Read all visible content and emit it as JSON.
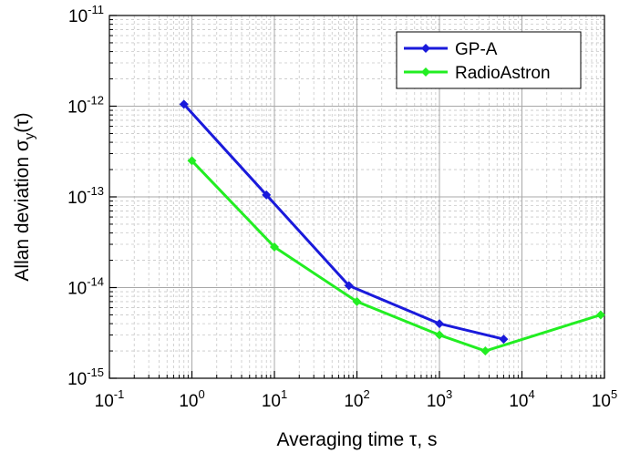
{
  "chart_data": {
    "type": "line",
    "title": "",
    "xlabel": "Averaging time τ, s",
    "ylabel": "Allan deviation σy(τ)",
    "xscale": "log",
    "yscale": "log",
    "xlim": [
      0.1,
      100000
    ],
    "ylim": [
      1e-15,
      1e-11
    ],
    "grid": true,
    "legend_position": "top-right",
    "x_ticks": [
      {
        "base": "10",
        "exp": "-1",
        "value": 0.1
      },
      {
        "base": "10",
        "exp": "0",
        "value": 1
      },
      {
        "base": "10",
        "exp": "1",
        "value": 10
      },
      {
        "base": "10",
        "exp": "2",
        "value": 100
      },
      {
        "base": "10",
        "exp": "3",
        "value": 1000
      },
      {
        "base": "10",
        "exp": "4",
        "value": 10000
      },
      {
        "base": "10",
        "exp": "5",
        "value": 100000
      }
    ],
    "y_ticks": [
      {
        "base": "10",
        "exp": "-15",
        "value": 1e-15
      },
      {
        "base": "10",
        "exp": "-14",
        "value": 1e-14
      },
      {
        "base": "10",
        "exp": "-13",
        "value": 1e-13
      },
      {
        "base": "10",
        "exp": "-12",
        "value": 1e-12
      },
      {
        "base": "10",
        "exp": "-11",
        "value": 1e-11
      }
    ],
    "series": [
      {
        "name": "GP-A",
        "color": "#1a1adb",
        "marker": "diamond",
        "x": [
          0.8,
          8,
          80,
          1000,
          6000
        ],
        "y": [
          1.05e-12,
          1.05e-13,
          1.05e-14,
          4e-15,
          2.7e-15
        ]
      },
      {
        "name": "RadioAstron",
        "color": "#22ee22",
        "marker": "diamond",
        "x": [
          1,
          10,
          100,
          1000,
          3600,
          90000
        ],
        "y": [
          2.5e-13,
          2.8e-14,
          7e-15,
          3e-15,
          2e-15,
          5e-15
        ]
      }
    ]
  }
}
